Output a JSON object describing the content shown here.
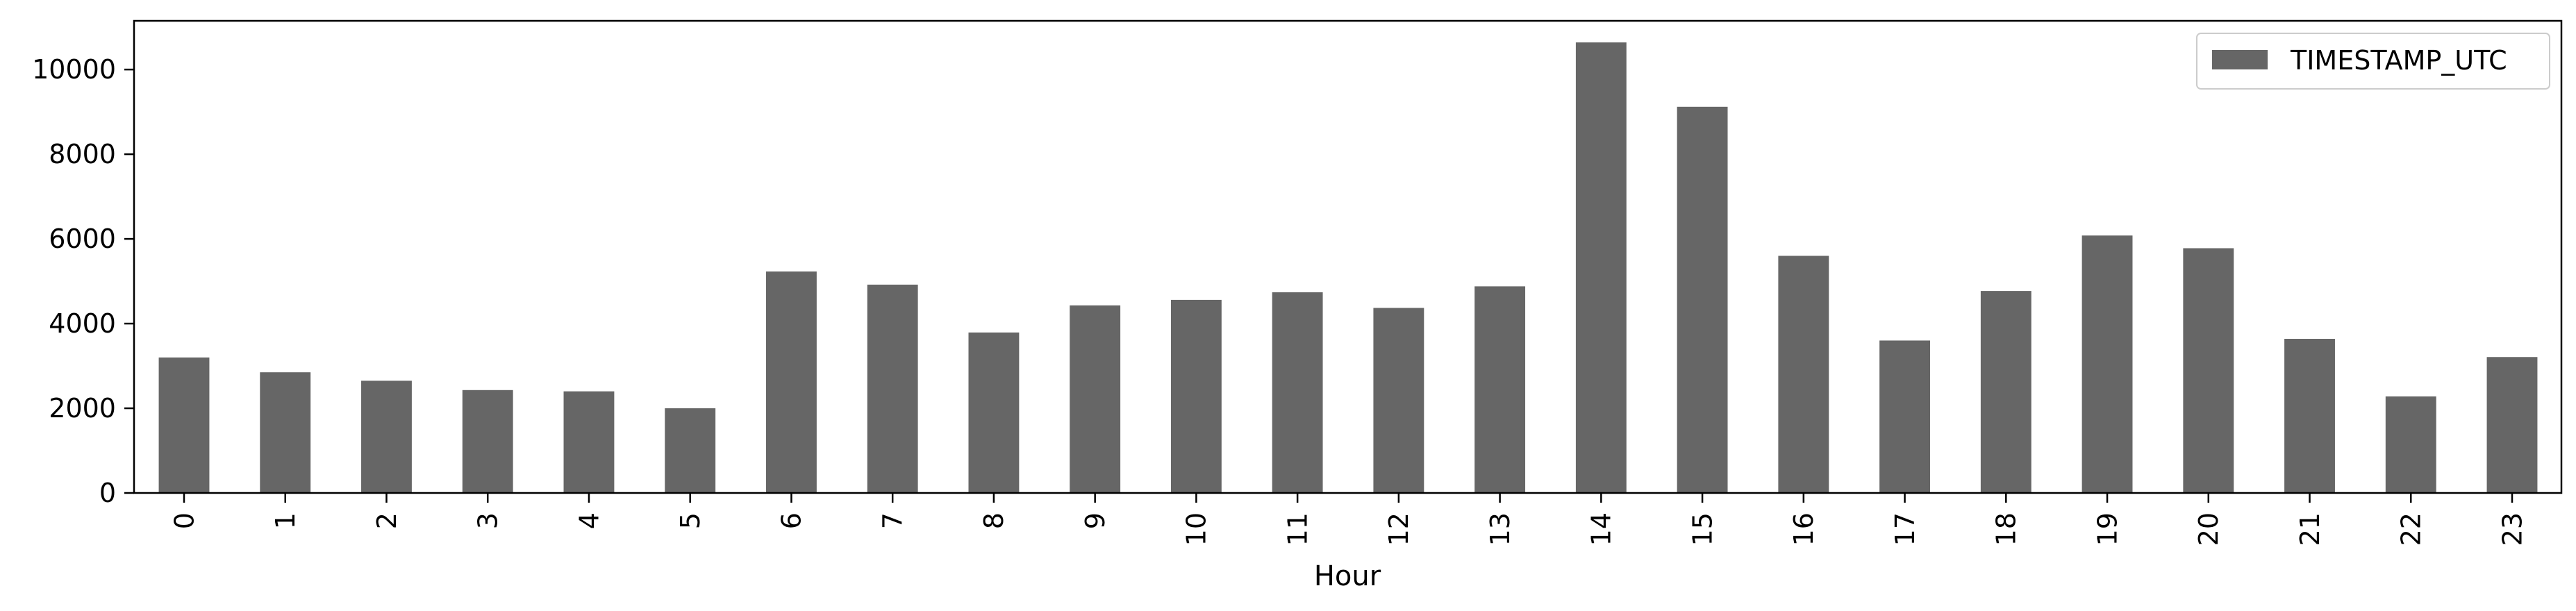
{
  "chart_data": {
    "type": "bar",
    "title": "",
    "xlabel": "Hour",
    "ylabel": "",
    "categories": [
      "0",
      "1",
      "2",
      "3",
      "4",
      "5",
      "6",
      "7",
      "8",
      "9",
      "10",
      "11",
      "12",
      "13",
      "14",
      "15",
      "16",
      "17",
      "18",
      "19",
      "20",
      "21",
      "22",
      "23"
    ],
    "series": [
      {
        "name": "TIMESTAMP_UTC",
        "color": "#666666",
        "values": [
          3200,
          2850,
          2650,
          2430,
          2400,
          2000,
          5230,
          4920,
          3790,
          4430,
          4560,
          4740,
          4370,
          4880,
          10640,
          9120,
          5600,
          3600,
          4770,
          6080,
          5780,
          3640,
          2280,
          3210
        ]
      }
    ],
    "ylim": [
      0,
      11150
    ],
    "yticks": [
      0,
      2000,
      4000,
      6000,
      8000,
      10000
    ],
    "ytick_labels": [
      "0",
      "2000",
      "4000",
      "6000",
      "8000",
      "10000"
    ],
    "legend_position": "top-right",
    "grid": false
  }
}
